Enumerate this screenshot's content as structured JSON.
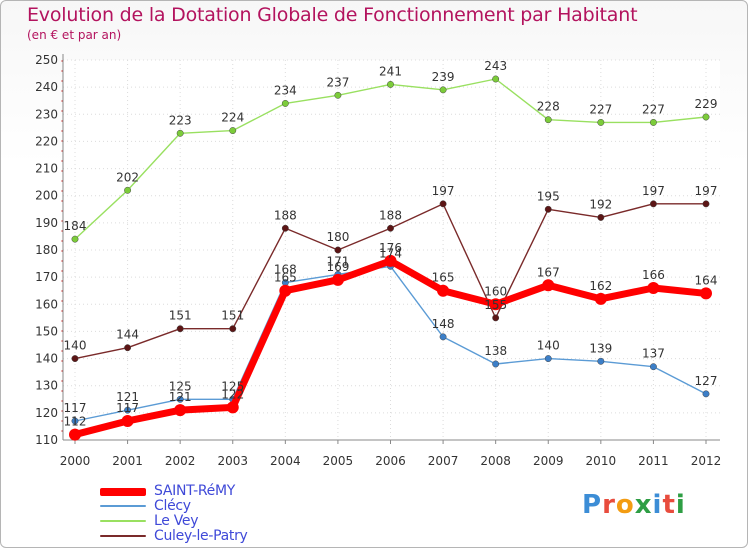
{
  "header": {
    "title": "Evolution de la Dotation Globale de Fonctionnement par Habitant",
    "subtitle": "(en € et par an)"
  },
  "logo": {
    "text": "Proxiti",
    "colors": [
      "#3c8dd6",
      "#e84c3d",
      "#f39c12",
      "#2e9e44",
      "#3c8dd6",
      "#e84c3d",
      "#2e9e44"
    ]
  },
  "chart_data": {
    "type": "line",
    "x": [
      "2000",
      "2001",
      "2002",
      "2003",
      "2004",
      "2005",
      "2006",
      "2007",
      "2008",
      "2009",
      "2010",
      "2011",
      "2012"
    ],
    "ylim": [
      110,
      250
    ],
    "yticks": [
      110,
      120,
      130,
      140,
      150,
      160,
      170,
      180,
      190,
      200,
      210,
      220,
      230,
      240,
      250
    ],
    "grid": true,
    "legend_position": "bottom-left",
    "series": [
      {
        "name": "SAINT-RéMY",
        "color": "#ff0000",
        "marker": "#ff0000",
        "values": [
          112,
          117,
          121,
          122,
          165,
          169,
          176,
          165,
          160,
          167,
          162,
          166,
          164
        ]
      },
      {
        "name": "Clécy",
        "color": "#5b9bd5",
        "marker": "#3c7fc8",
        "values": [
          117,
          121,
          125,
          125,
          168,
          171,
          174,
          148,
          138,
          140,
          139,
          137,
          127
        ]
      },
      {
        "name": "Le Vey",
        "color": "#99e060",
        "marker": "#7ccc3a",
        "values": [
          184,
          202,
          223,
          224,
          234,
          237,
          241,
          239,
          243,
          228,
          227,
          227,
          229
        ]
      },
      {
        "name": "Culey-le-Patry",
        "color": "#7a2a2a",
        "marker": "#5c1515",
        "values": [
          140,
          144,
          151,
          151,
          188,
          180,
          188,
          197,
          155,
          195,
          192,
          197,
          197
        ]
      }
    ],
    "data_labels": [
      {
        "series": 0,
        "labels": [
          "112",
          "117",
          "121",
          "122",
          "165",
          "169",
          "176",
          "165",
          "160",
          "167",
          "162",
          "166",
          "164"
        ]
      },
      {
        "series": 1,
        "labels": [
          "117",
          "121",
          "125",
          "125",
          "168",
          "171",
          "174",
          "148",
          "138",
          "140",
          "139",
          "137",
          "127"
        ]
      },
      {
        "series": 2,
        "labels": [
          "184",
          "202",
          "223",
          "224",
          "234",
          "237",
          "241",
          "239",
          "243",
          "228",
          "227",
          "227",
          "229"
        ]
      },
      {
        "series": 3,
        "labels": [
          "140",
          "144",
          "151",
          "151",
          "188",
          "180",
          "188",
          "197",
          "155",
          "195",
          "192",
          "197",
          "197"
        ]
      }
    ]
  }
}
